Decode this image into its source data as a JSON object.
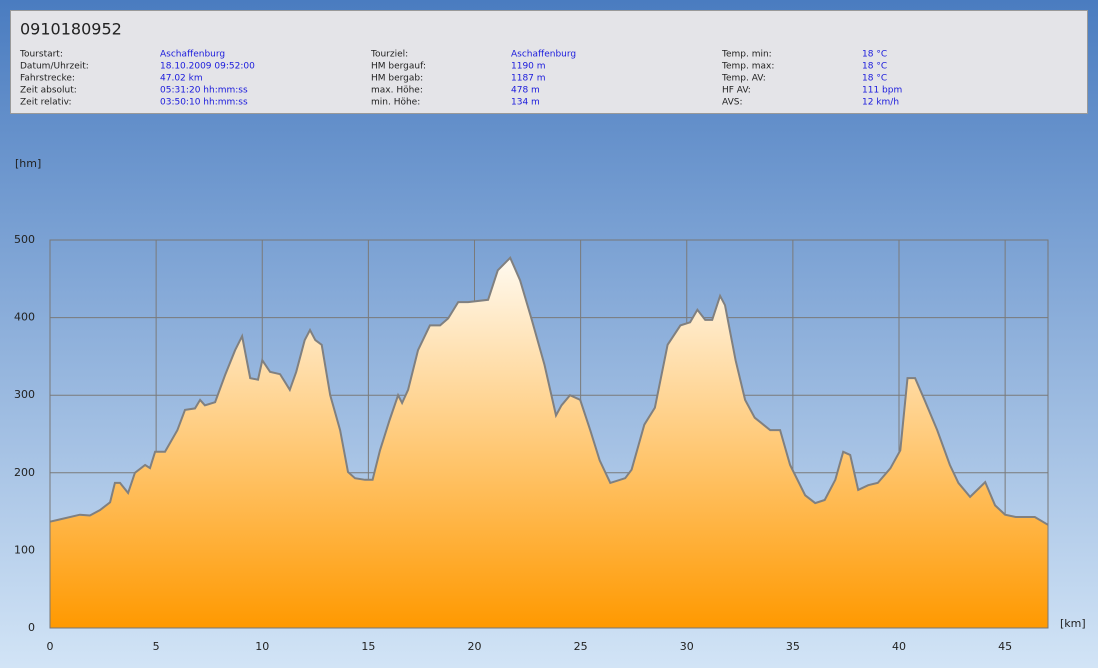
{
  "header": {
    "title": "0910180952",
    "info": [
      {
        "label": "Tourstart:",
        "value": "Aschaffenburg"
      },
      {
        "label": "Datum/Uhrzeit:",
        "value": "18.10.2009 09:52:00"
      },
      {
        "label": "Fahrstrecke:",
        "value": "47.02 km"
      },
      {
        "label": "Zeit absolut:",
        "value": "05:31:20 hh:mm:ss"
      },
      {
        "label": "Zeit relativ:",
        "value": "03:50:10 hh:mm:ss"
      },
      {
        "label": "Tourziel:",
        "value": "Aschaffenburg"
      },
      {
        "label": "HM bergauf:",
        "value": "1190 m"
      },
      {
        "label": "HM bergab:",
        "value": "1187 m"
      },
      {
        "label": "max. Höhe:",
        "value": "478 m"
      },
      {
        "label": "min. Höhe:",
        "value": "134 m"
      },
      {
        "label": "Temp. min:",
        "value": "18 °C"
      },
      {
        "label": "Temp. max:",
        "value": "18 °C"
      },
      {
        "label": "Temp. AV:",
        "value": "18 °C"
      },
      {
        "label": "HF AV:",
        "value": "111 bpm"
      },
      {
        "label": "AVS:",
        "value": "12 km/h"
      }
    ]
  },
  "chart_data": {
    "type": "area",
    "y_label": "[hm]",
    "x_label": "[km]",
    "color": "#ff9900",
    "line_color": "#808080",
    "grid": true,
    "xlim": [
      0,
      47.02
    ],
    "ylim": [
      0,
      500
    ],
    "xticks": [
      0,
      5,
      10,
      15,
      20,
      25,
      30,
      35,
      40,
      45
    ],
    "yticks": [
      0,
      100,
      200,
      300,
      400,
      500
    ],
    "x": [
      0,
      0.47,
      1.41,
      1.88,
      2.36,
      2.83,
      3.06,
      3.3,
      3.68,
      4.0,
      4.48,
      4.71,
      4.95,
      5.42,
      6.0,
      6.36,
      6.83,
      7.07,
      7.3,
      7.78,
      8.25,
      8.72,
      9.05,
      9.43,
      9.8,
      10.0,
      10.37,
      10.84,
      11.3,
      11.6,
      12.0,
      12.25,
      12.5,
      12.8,
      13.2,
      13.67,
      14.04,
      14.37,
      14.84,
      15.2,
      15.55,
      16.0,
      16.4,
      16.59,
      16.87,
      17.34,
      17.9,
      18.38,
      18.76,
      19.23,
      19.7,
      20.64,
      21.1,
      21.68,
      22.15,
      22.7,
      23.3,
      23.84,
      24.1,
      24.5,
      24.98,
      25.45,
      25.9,
      26.4,
      27.1,
      27.4,
      28.0,
      28.5,
      29.1,
      29.7,
      30.16,
      30.5,
      30.87,
      31.2,
      31.57,
      31.8,
      32.3,
      32.75,
      33.2,
      33.93,
      34.4,
      34.87,
      35.58,
      36.05,
      36.5,
      37.0,
      37.37,
      37.7,
      38.08,
      38.55,
      39.0,
      39.6,
      40.06,
      40.4,
      40.76,
      41.2,
      41.8,
      42.4,
      42.8,
      43.35,
      44.06,
      44.53,
      45.0,
      45.5,
      46.4,
      47.02
    ],
    "y": [
      137,
      140,
      146,
      145,
      152,
      162,
      187,
      187,
      174,
      200,
      210,
      206,
      227,
      227,
      255,
      281,
      283,
      294,
      287,
      291,
      326,
      358,
      376,
      322,
      320,
      345,
      330,
      327,
      307,
      330,
      371,
      384,
      371,
      365,
      300,
      255,
      201,
      193,
      191,
      191,
      229,
      268,
      300,
      290,
      307,
      358,
      390,
      390,
      399,
      420,
      420,
      423,
      461,
      477,
      448,
      397,
      339,
      274,
      287,
      300,
      294,
      255,
      216,
      187,
      193,
      204,
      262,
      284,
      365,
      390,
      394,
      410,
      397,
      397,
      428,
      416,
      345,
      294,
      271,
      255,
      255,
      210,
      171,
      161,
      165,
      191,
      227,
      223,
      178,
      184,
      187,
      206,
      229,
      322,
      322,
      294,
      255,
      210,
      187,
      169,
      188,
      158,
      146,
      143,
      143,
      133
    ]
  }
}
